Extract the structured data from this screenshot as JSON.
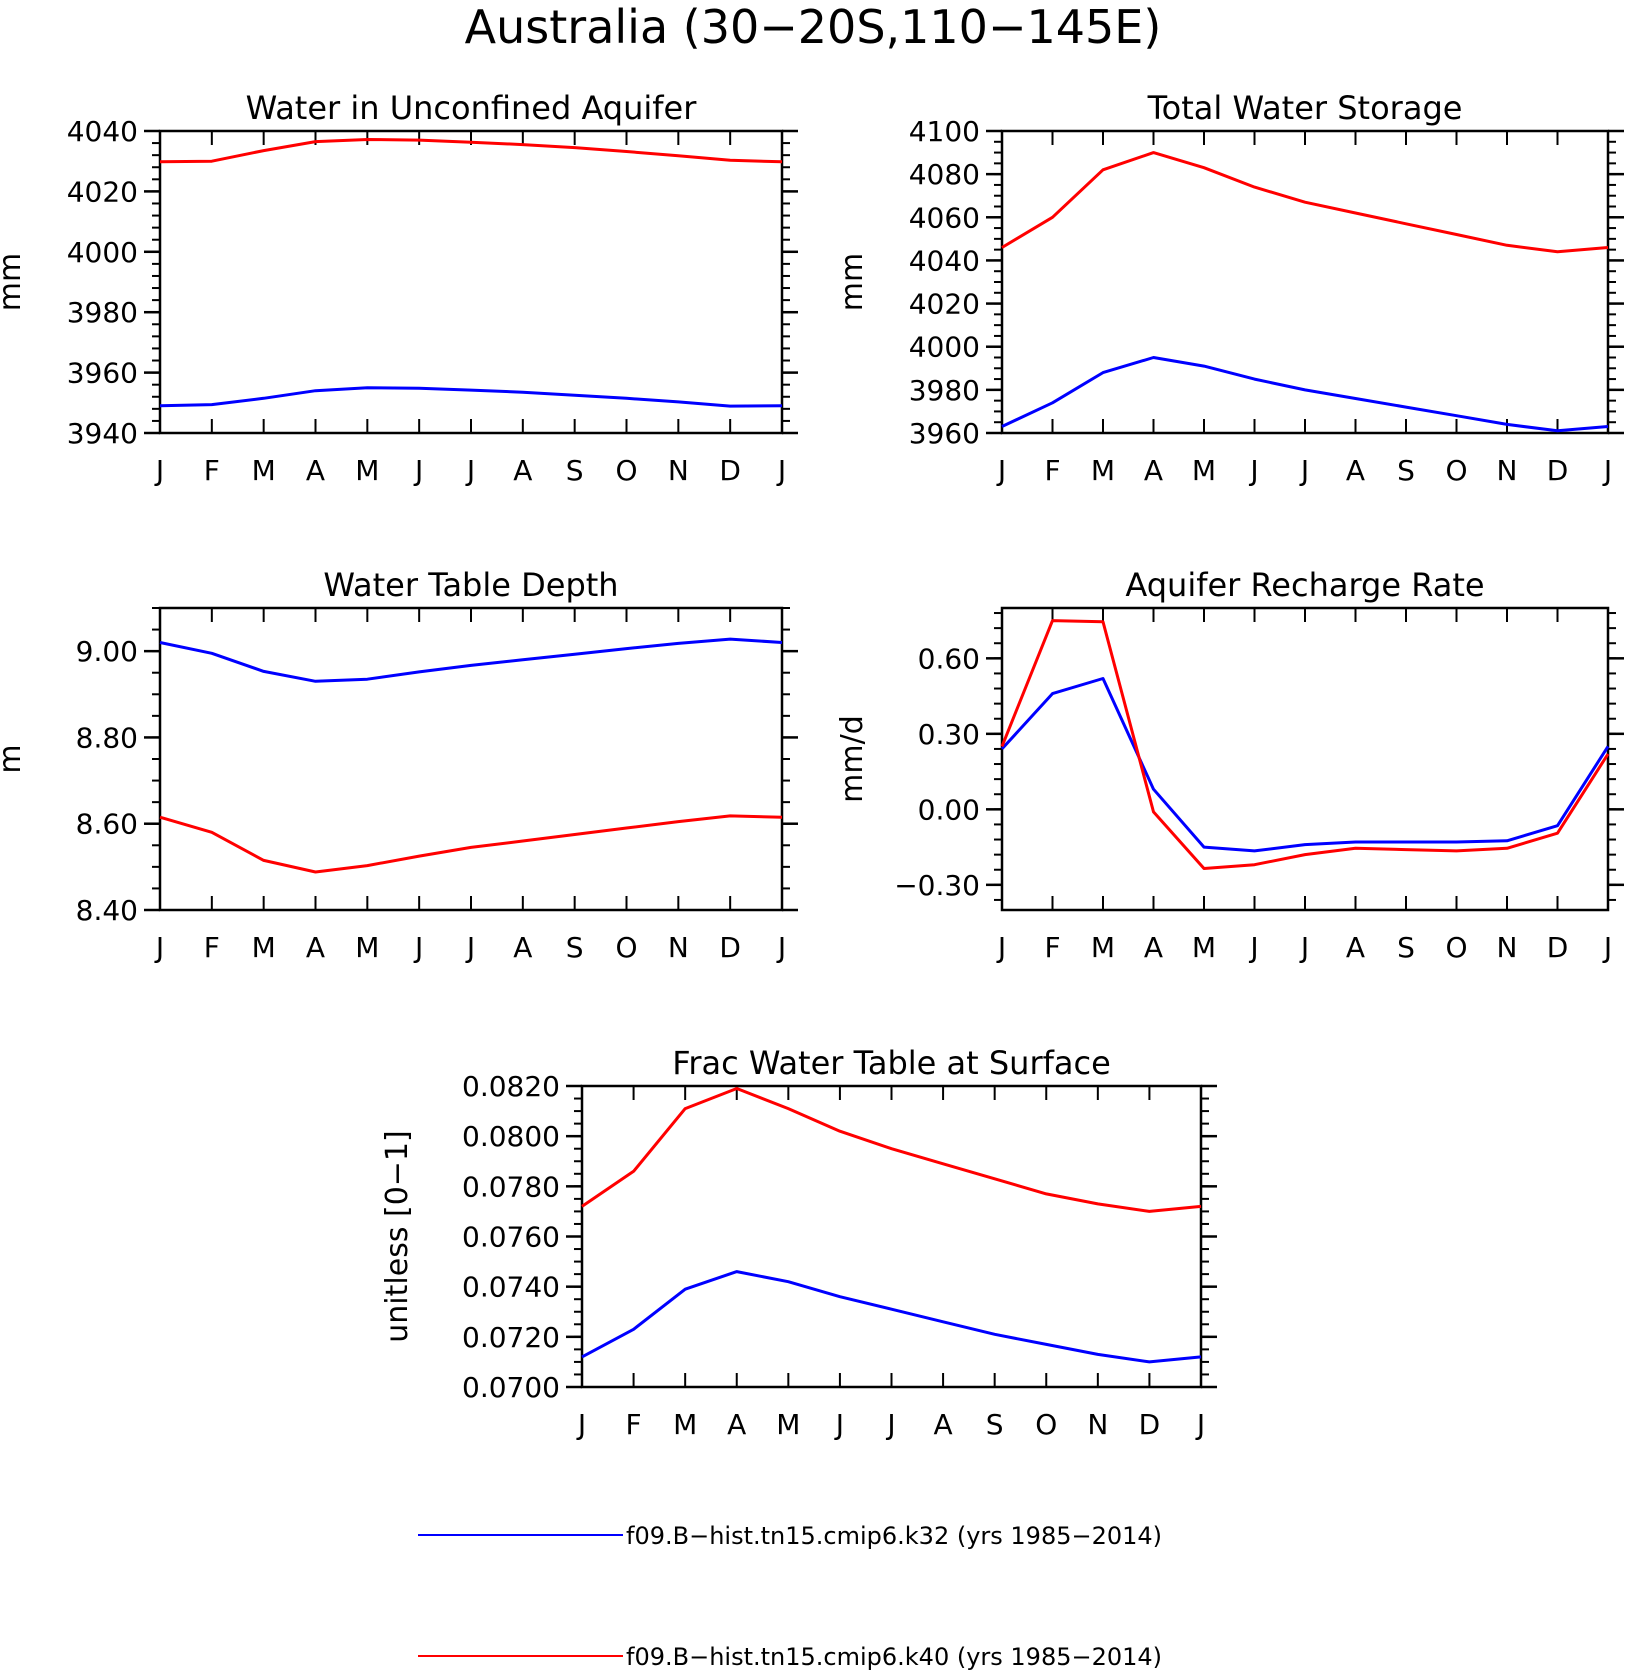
{
  "figure": {
    "title": "Australia (30−20S,110−145E)"
  },
  "legend": {
    "entries": [
      {
        "name": "f09.B−hist.tn15.cmip6.k32 (yrs 1985−2014)",
        "color": "#0000ff"
      },
      {
        "name": "f09.B−hist.tn15.cmip6.k40 (yrs 1985−2014)",
        "color": "#ff0000"
      }
    ]
  },
  "chart_data": [
    {
      "id": "aquifer",
      "type": "line",
      "title": "Water in Unconfined Aquifer",
      "ylabel": "mm",
      "xlabel": "",
      "categories": [
        "J",
        "F",
        "M",
        "A",
        "M",
        "J",
        "J",
        "A",
        "S",
        "O",
        "N",
        "D",
        "J"
      ],
      "ylim": [
        3940,
        4040
      ],
      "yticks": [
        3940,
        3960,
        3980,
        4000,
        4020,
        4040
      ],
      "ytick_labels": [
        "3940",
        "3960",
        "3980",
        "4000",
        "4020",
        "4040"
      ],
      "yminor": 4,
      "series": [
        {
          "color": "#0000ff",
          "values": [
            3949.0,
            3949.4,
            3951.5,
            3954.0,
            3955.0,
            3954.8,
            3954.2,
            3953.5,
            3952.5,
            3951.5,
            3950.3,
            3948.9,
            3949.0
          ]
        },
        {
          "color": "#ff0000",
          "values": [
            4029.8,
            4030.0,
            4033.5,
            4036.5,
            4037.2,
            4037.0,
            4036.3,
            4035.5,
            4034.5,
            4033.2,
            4031.8,
            4030.3,
            4029.8
          ]
        }
      ]
    },
    {
      "id": "tws",
      "type": "line",
      "title": "Total Water Storage",
      "ylabel": "mm",
      "xlabel": "",
      "categories": [
        "J",
        "F",
        "M",
        "A",
        "M",
        "J",
        "J",
        "A",
        "S",
        "O",
        "N",
        "D",
        "J"
      ],
      "ylim": [
        3960,
        4100
      ],
      "yticks": [
        3960,
        3980,
        4000,
        4020,
        4040,
        4060,
        4080,
        4100
      ],
      "ytick_labels": [
        "3960",
        "3980",
        "4000",
        "4020",
        "4040",
        "4060",
        "4080",
        "4100"
      ],
      "yminor": 3,
      "series": [
        {
          "color": "#0000ff",
          "values": [
            3963,
            3974,
            3988,
            3995,
            3991,
            3985,
            3980,
            3976,
            3972,
            3968,
            3964,
            3961,
            3963
          ]
        },
        {
          "color": "#ff0000",
          "values": [
            4046,
            4060,
            4082,
            4090,
            4083,
            4074,
            4067,
            4062,
            4057,
            4052,
            4047,
            4044,
            4046
          ]
        }
      ]
    },
    {
      "id": "wtd",
      "type": "line",
      "title": "Water Table Depth",
      "ylabel": "m",
      "xlabel": "",
      "categories": [
        "J",
        "F",
        "M",
        "A",
        "M",
        "J",
        "J",
        "A",
        "S",
        "O",
        "N",
        "D",
        "J"
      ],
      "ylim": [
        8.4,
        9.1
      ],
      "yticks": [
        8.4,
        8.6,
        8.8,
        9.0
      ],
      "ytick_labels": [
        "8.40",
        "8.60",
        "8.80",
        "9.00"
      ],
      "yminor": 3,
      "series": [
        {
          "color": "#0000ff",
          "values": [
            9.02,
            8.995,
            8.953,
            8.93,
            8.935,
            8.952,
            8.967,
            8.98,
            8.993,
            9.006,
            9.018,
            9.028,
            9.02
          ]
        },
        {
          "color": "#ff0000",
          "values": [
            8.615,
            8.58,
            8.515,
            8.488,
            8.503,
            8.525,
            8.545,
            8.56,
            8.575,
            8.59,
            8.605,
            8.618,
            8.615
          ]
        }
      ]
    },
    {
      "id": "recharge",
      "type": "line",
      "title": "Aquifer Recharge Rate",
      "ylabel": "mm/d",
      "xlabel": "",
      "categories": [
        "J",
        "F",
        "M",
        "A",
        "M",
        "J",
        "J",
        "A",
        "S",
        "O",
        "N",
        "D",
        "J"
      ],
      "ylim": [
        -0.4,
        0.8
      ],
      "yticks": [
        -0.3,
        0.0,
        0.3,
        0.6
      ],
      "ytick_labels": [
        "−0.30",
        "0.00",
        "0.30",
        "0.60"
      ],
      "yminor": 4,
      "series": [
        {
          "color": "#0000ff",
          "values": [
            0.24,
            0.46,
            0.52,
            0.08,
            -0.15,
            -0.165,
            -0.14,
            -0.13,
            -0.13,
            -0.13,
            -0.125,
            -0.065,
            0.25
          ]
        },
        {
          "color": "#ff0000",
          "values": [
            0.25,
            0.75,
            0.745,
            -0.01,
            -0.235,
            -0.22,
            -0.18,
            -0.155,
            -0.16,
            -0.165,
            -0.155,
            -0.095,
            0.22
          ]
        }
      ]
    },
    {
      "id": "frac",
      "type": "line",
      "title": "Frac Water Table at Surface",
      "ylabel": "unitless [0−1]",
      "xlabel": "",
      "categories": [
        "J",
        "F",
        "M",
        "A",
        "M",
        "J",
        "J",
        "A",
        "S",
        "O",
        "N",
        "D",
        "J"
      ],
      "ylim": [
        0.07,
        0.082
      ],
      "yticks": [
        0.07,
        0.072,
        0.074,
        0.076,
        0.078,
        0.08,
        0.082
      ],
      "ytick_labels": [
        "0.0700",
        "0.0720",
        "0.0740",
        "0.0760",
        "0.0780",
        "0.0800",
        "0.0820"
      ],
      "yminor": 3,
      "series": [
        {
          "color": "#0000ff",
          "values": [
            0.0712,
            0.0723,
            0.0739,
            0.0746,
            0.0742,
            0.0736,
            0.0731,
            0.0726,
            0.0721,
            0.0717,
            0.0713,
            0.071,
            0.0712
          ]
        },
        {
          "color": "#ff0000",
          "values": [
            0.0772,
            0.0786,
            0.0811,
            0.0819,
            0.0811,
            0.0802,
            0.0795,
            0.0789,
            0.0783,
            0.0777,
            0.0773,
            0.077,
            0.0772
          ]
        }
      ]
    }
  ]
}
